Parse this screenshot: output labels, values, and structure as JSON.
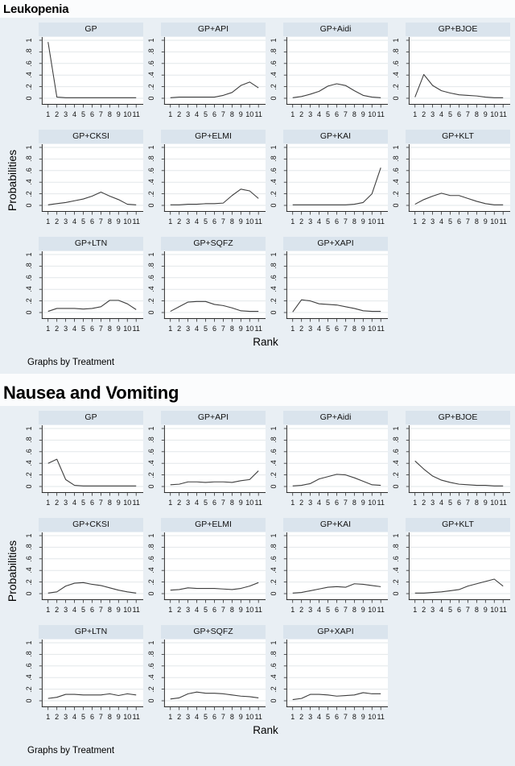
{
  "colors": {
    "page_bg": "#fbfcfd",
    "block_bg": "#e9eff4",
    "panel_header_bg": "#dae4ed",
    "plot_bg": "#ffffff",
    "grid_line": "#e2e7ea",
    "axis": "#2b2b2b",
    "series_line": "#3d3d3d"
  },
  "chart_data": [
    {
      "type": "line",
      "title": "Leukopenia",
      "x": [
        1,
        2,
        3,
        4,
        5,
        6,
        7,
        8,
        9,
        10,
        11
      ],
      "x_tick_labels": [
        "1",
        "2",
        "3",
        "4",
        "5",
        "6",
        "7",
        "8",
        "9",
        "10",
        "11"
      ],
      "xlabel": "Rank",
      "ylabel": "Probabilities",
      "ylim": [
        0,
        1
      ],
      "y_ticks": [
        1,
        0.8,
        0.6,
        0.4,
        0.2,
        0
      ],
      "y_tick_labels": [
        "1",
        ".8",
        ".6",
        ".4",
        ".2",
        "0"
      ],
      "grid": true,
      "legend": "none",
      "note": "Graphs by Treatment",
      "series": [
        {
          "name": "GP",
          "values": [
            0.97,
            0.02,
            0.01,
            0.01,
            0.01,
            0.01,
            0.01,
            0.01,
            0.01,
            0.01,
            0.01
          ]
        },
        {
          "name": "GP+API",
          "values": [
            0.01,
            0.02,
            0.02,
            0.02,
            0.02,
            0.02,
            0.05,
            0.1,
            0.22,
            0.28,
            0.18
          ]
        },
        {
          "name": "GP+Aidi",
          "values": [
            0.01,
            0.03,
            0.07,
            0.12,
            0.21,
            0.25,
            0.22,
            0.13,
            0.05,
            0.02,
            0.01
          ]
        },
        {
          "name": "GP+BJOE",
          "values": [
            0.02,
            0.41,
            0.22,
            0.13,
            0.09,
            0.06,
            0.05,
            0.04,
            0.02,
            0.01,
            0.01
          ]
        },
        {
          "name": "GP+CKSI",
          "values": [
            0.01,
            0.03,
            0.05,
            0.08,
            0.11,
            0.16,
            0.23,
            0.16,
            0.1,
            0.02,
            0.01
          ]
        },
        {
          "name": "GP+ELMI",
          "values": [
            0.01,
            0.01,
            0.02,
            0.02,
            0.03,
            0.03,
            0.04,
            0.17,
            0.28,
            0.25,
            0.12
          ]
        },
        {
          "name": "GP+KAI",
          "values": [
            0.01,
            0.01,
            0.01,
            0.01,
            0.01,
            0.01,
            0.01,
            0.02,
            0.05,
            0.2,
            0.65
          ]
        },
        {
          "name": "GP+KLT",
          "values": [
            0.02,
            0.1,
            0.16,
            0.21,
            0.17,
            0.17,
            0.12,
            0.07,
            0.03,
            0.01,
            0.01
          ]
        },
        {
          "name": "GP+LTN",
          "values": [
            0.02,
            0.07,
            0.07,
            0.07,
            0.06,
            0.07,
            0.1,
            0.21,
            0.21,
            0.15,
            0.05
          ]
        },
        {
          "name": "GP+SQFZ",
          "values": [
            0.02,
            0.1,
            0.18,
            0.19,
            0.19,
            0.14,
            0.12,
            0.08,
            0.03,
            0.02,
            0.02
          ]
        },
        {
          "name": "GP+XAPI",
          "values": [
            0.01,
            0.22,
            0.2,
            0.15,
            0.14,
            0.13,
            0.1,
            0.07,
            0.03,
            0.02,
            0.02
          ]
        }
      ]
    },
    {
      "type": "line",
      "title": "Nausea and Vomiting",
      "x": [
        1,
        2,
        3,
        4,
        5,
        6,
        7,
        8,
        9,
        10,
        11
      ],
      "x_tick_labels": [
        "1",
        "2",
        "3",
        "4",
        "5",
        "6",
        "7",
        "8",
        "9",
        "10",
        "11"
      ],
      "xlabel": "Rank",
      "ylabel": "Probabilities",
      "ylim": [
        0,
        1
      ],
      "y_ticks": [
        1,
        0.8,
        0.6,
        0.4,
        0.2,
        0
      ],
      "y_tick_labels": [
        "1",
        ".8",
        ".6",
        ".4",
        ".2",
        "0"
      ],
      "grid": true,
      "legend": "none",
      "note": "Graphs by Treatment",
      "series": [
        {
          "name": "GP",
          "values": [
            0.4,
            0.47,
            0.12,
            0.02,
            0.01,
            0.01,
            0.01,
            0.01,
            0.01,
            0.01,
            0.01
          ]
        },
        {
          "name": "GP+API",
          "values": [
            0.03,
            0.04,
            0.08,
            0.08,
            0.07,
            0.08,
            0.08,
            0.07,
            0.1,
            0.12,
            0.27
          ]
        },
        {
          "name": "GP+Aidi",
          "values": [
            0.01,
            0.02,
            0.05,
            0.13,
            0.17,
            0.21,
            0.2,
            0.15,
            0.09,
            0.03,
            0.02
          ]
        },
        {
          "name": "GP+BJOE",
          "values": [
            0.44,
            0.3,
            0.18,
            0.11,
            0.07,
            0.04,
            0.03,
            0.02,
            0.02,
            0.01,
            0.01
          ]
        },
        {
          "name": "GP+CKSI",
          "values": [
            0.01,
            0.03,
            0.13,
            0.18,
            0.19,
            0.16,
            0.14,
            0.1,
            0.06,
            0.03,
            0.01
          ]
        },
        {
          "name": "GP+ELMI",
          "values": [
            0.06,
            0.07,
            0.1,
            0.09,
            0.09,
            0.09,
            0.08,
            0.07,
            0.09,
            0.13,
            0.19
          ]
        },
        {
          "name": "GP+KAI",
          "values": [
            0.01,
            0.02,
            0.05,
            0.08,
            0.11,
            0.12,
            0.11,
            0.17,
            0.16,
            0.14,
            0.12
          ]
        },
        {
          "name": "GP+KLT",
          "values": [
            0.01,
            0.01,
            0.02,
            0.03,
            0.05,
            0.07,
            0.13,
            0.17,
            0.21,
            0.25,
            0.13
          ]
        },
        {
          "name": "GP+LTN",
          "values": [
            0.04,
            0.06,
            0.11,
            0.11,
            0.1,
            0.1,
            0.1,
            0.12,
            0.09,
            0.12,
            0.1
          ]
        },
        {
          "name": "GP+SQFZ",
          "values": [
            0.03,
            0.05,
            0.12,
            0.15,
            0.13,
            0.13,
            0.12,
            0.1,
            0.08,
            0.07,
            0.05
          ]
        },
        {
          "name": "GP+XAPI",
          "values": [
            0.02,
            0.04,
            0.11,
            0.11,
            0.1,
            0.08,
            0.09,
            0.1,
            0.14,
            0.12,
            0.12
          ]
        }
      ]
    }
  ]
}
